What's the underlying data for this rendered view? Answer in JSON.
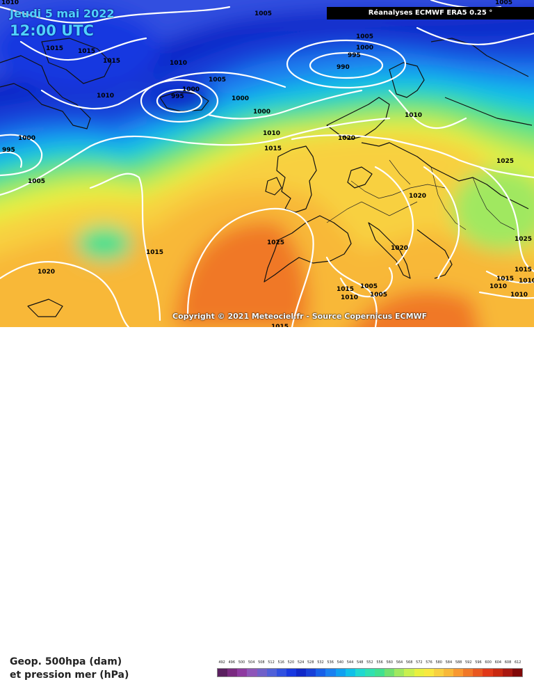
{
  "header": {
    "date": "Jeudi 5 mai 2022",
    "time": "12:00 UTC",
    "source": "Réanalyses ECMWF ERA5 0.25 °",
    "copyright": "Copyright © 2021 Meteociel.fr - Source Copernicus ECMWF"
  },
  "legend": {
    "title_line1": "Geop. 500hpa (dam)",
    "title_line2": "et pression mer (hPa)",
    "scale_values": [
      "492",
      "496",
      "500",
      "504",
      "508",
      "512",
      "516",
      "520",
      "524",
      "528",
      "532",
      "536",
      "540",
      "544",
      "548",
      "552",
      "556",
      "560",
      "564",
      "568",
      "572",
      "576",
      "580",
      "584",
      "588",
      "592",
      "596",
      "600",
      "604",
      "608",
      "612"
    ],
    "scale_colors": [
      "#5a1f5f",
      "#7a2a80",
      "#8e3aa0",
      "#8e55b8",
      "#7060c8",
      "#5060d8",
      "#3050e0",
      "#1838e0",
      "#1028c8",
      "#1840d8",
      "#1860e8",
      "#1a80f0",
      "#10a0f0",
      "#10c0e8",
      "#20d8d0",
      "#30e0b0",
      "#40e090",
      "#70e070",
      "#a0e860",
      "#c8f050",
      "#e8f040",
      "#f8e840",
      "#f8d040",
      "#f8b838",
      "#f89830",
      "#f07828",
      "#e85820",
      "#e03818",
      "#c82810",
      "#a81810",
      "#800808"
    ]
  },
  "pressure_labels": [
    "1010",
    "1005",
    "1005",
    "1015",
    "1015",
    "1015",
    "1010",
    "1000",
    "995",
    "990",
    "1005",
    "1005",
    "1000",
    "995",
    "1000",
    "1000",
    "1010",
    "1010",
    "1000",
    "995",
    "1015",
    "1020",
    "1010",
    "1025",
    "1005",
    "1020",
    "1015",
    "1025",
    "1020",
    "1025",
    "1015",
    "1010",
    "1005",
    "1005",
    "1015",
    "1010",
    "1010",
    "1015",
    "1010",
    "1020",
    "1015"
  ]
}
